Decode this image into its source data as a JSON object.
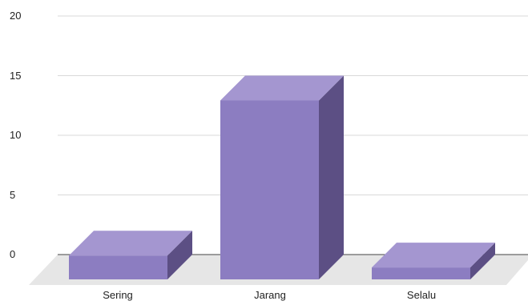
{
  "chart_data": {
    "type": "bar",
    "style": "3d-column",
    "categories": [
      "Sering",
      "Jarang",
      "Selalu"
    ],
    "values": [
      2,
      15,
      1
    ],
    "y_ticks": [
      "0",
      "5",
      "10",
      "15",
      "20"
    ],
    "ylim": [
      0,
      20
    ],
    "grid": true,
    "legend": "none",
    "colors": {
      "front": "#8c7dc1",
      "top": "#a496d0",
      "side": "#5c4f84",
      "floor": "#e6e6e6",
      "grid": "#d9d9d9",
      "baseline": "#444444",
      "text": "#222222"
    }
  }
}
